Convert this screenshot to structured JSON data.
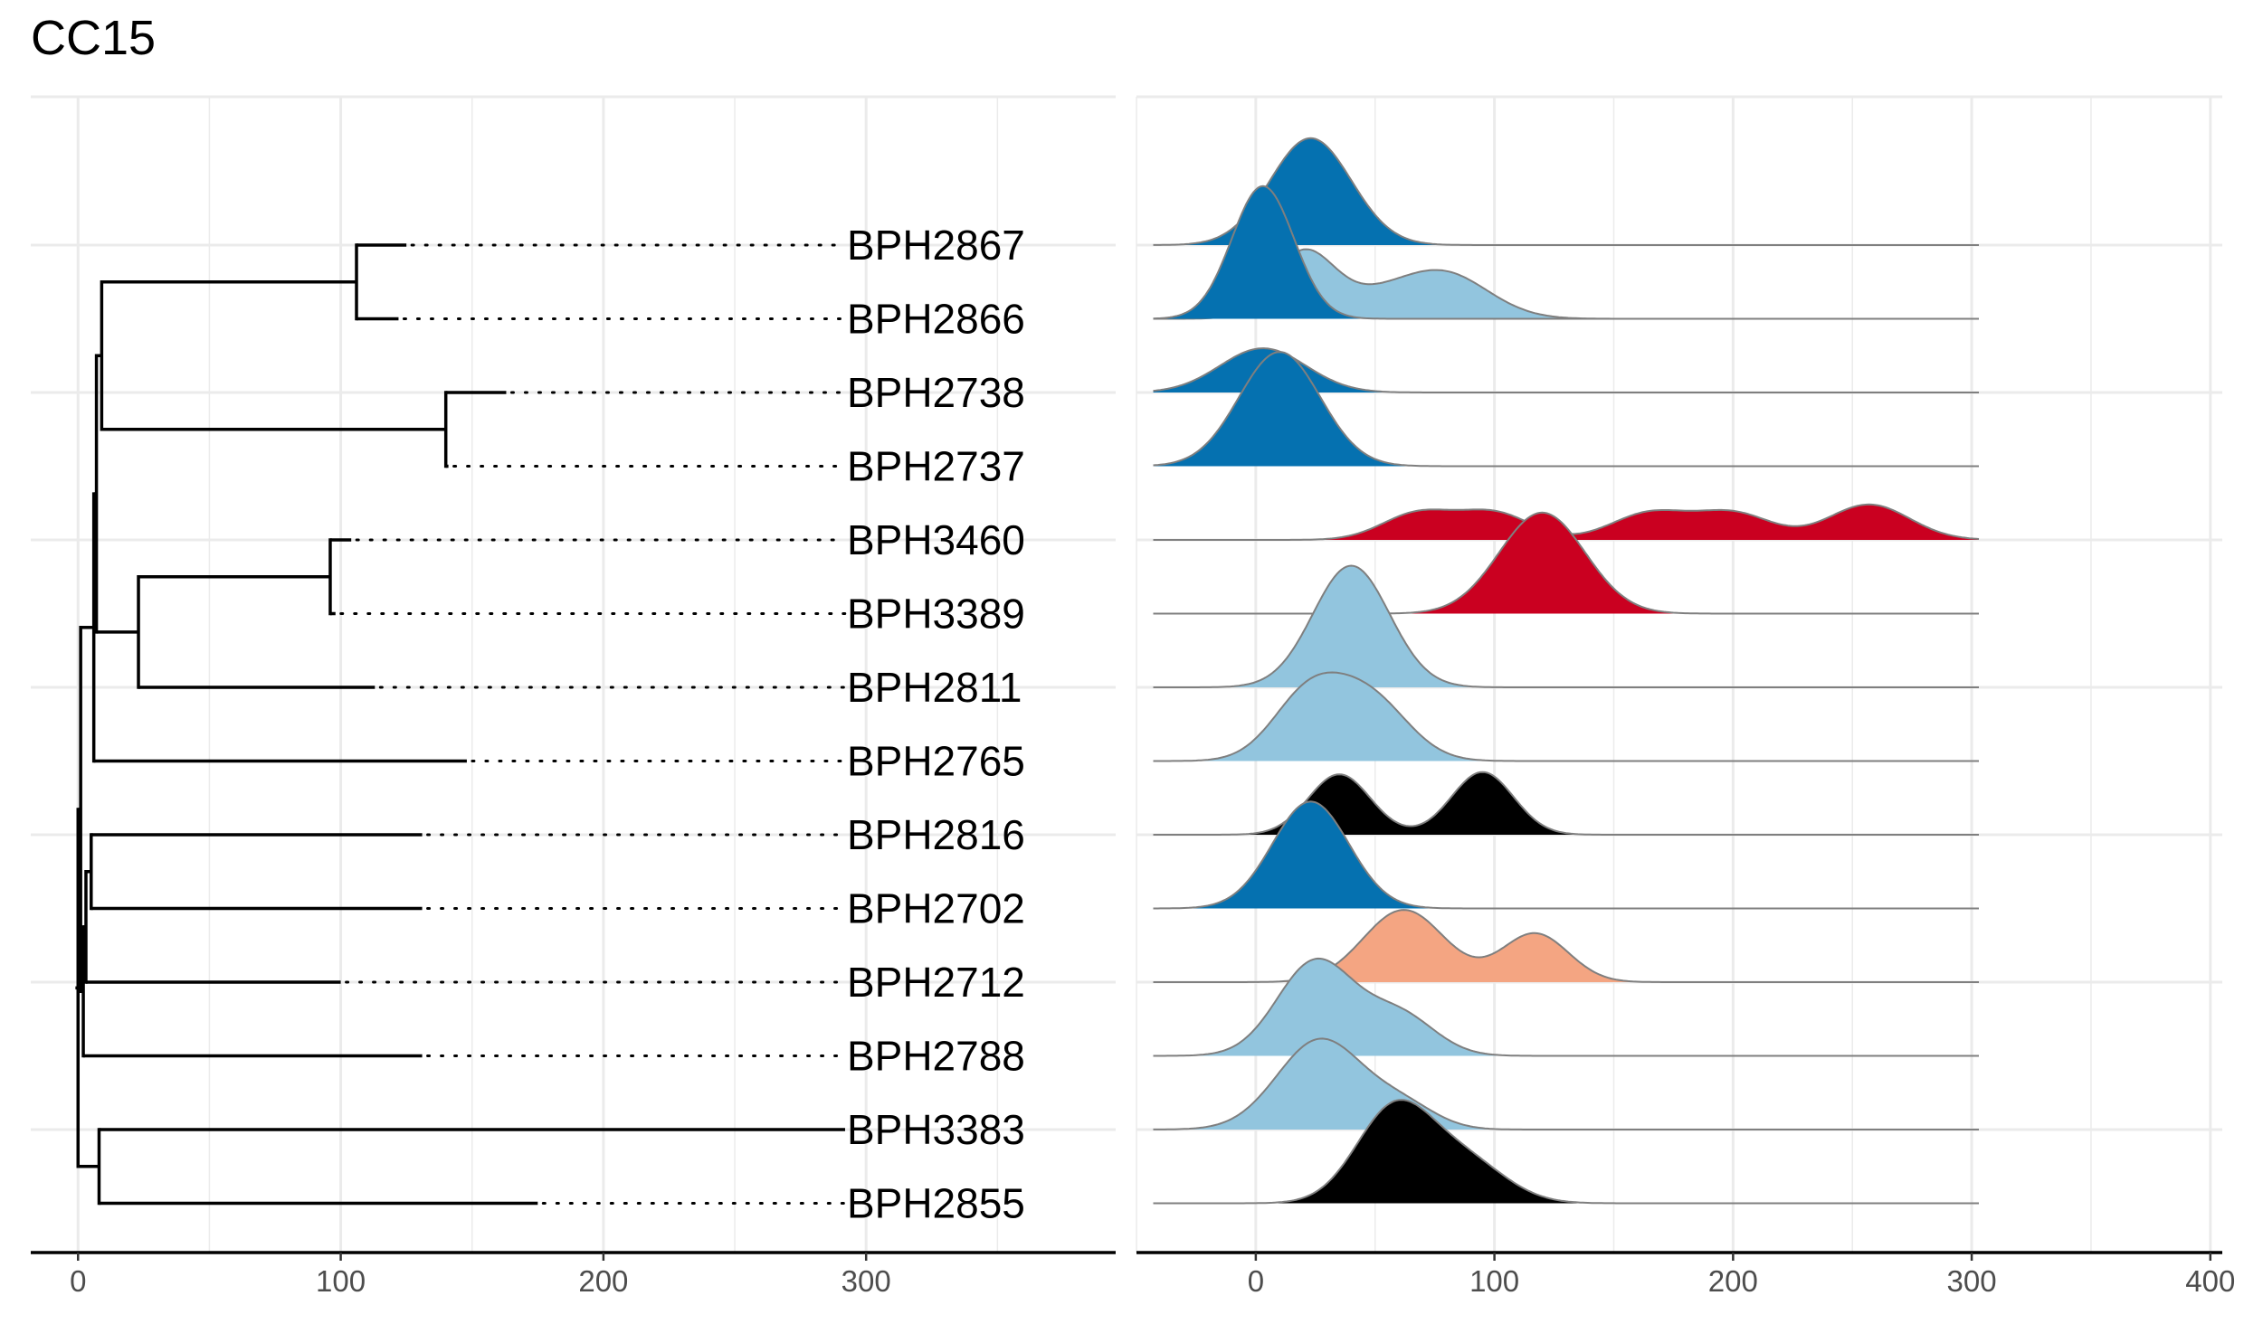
{
  "chart_data": {
    "title": "CC15",
    "type": "tree-ridgeline",
    "colors": {
      "dark_blue": "#0571b0",
      "light_blue": "#92c5de",
      "red": "#ca0020",
      "salmon": "#f4a582",
      "black": "#000000",
      "grid": "#ebebeb",
      "outline": "#7f7f7f",
      "branch": "#000000"
    },
    "tips": [
      "BPH2867",
      "BPH2866",
      "BPH2738",
      "BPH2737",
      "BPH3460",
      "BPH3389",
      "BPH2811",
      "BPH2765",
      "BPH2816",
      "BPH2702",
      "BPH2712",
      "BPH2788",
      "BPH3383",
      "BPH2855"
    ],
    "tree_panel": {
      "xlim": [
        -18,
        395
      ],
      "x_ticks": [
        0,
        100,
        200,
        300
      ],
      "tip_label_x": 292,
      "nodes": [
        {
          "id": "n2867",
          "tip": 0,
          "x": 125
        },
        {
          "id": "n2866",
          "tip": 1,
          "x": 122
        },
        {
          "id": "n2738",
          "tip": 2,
          "x": 163
        },
        {
          "id": "n2737",
          "tip": 3,
          "x": 141
        },
        {
          "id": "n3460",
          "tip": 4,
          "x": 104
        },
        {
          "id": "n3389",
          "tip": 5,
          "x": 98
        },
        {
          "id": "n2811",
          "tip": 6,
          "x": 113
        },
        {
          "id": "n2765",
          "tip": 7,
          "x": 148
        },
        {
          "id": "n2816",
          "tip": 8,
          "x": 131
        },
        {
          "id": "n2702",
          "tip": 9,
          "x": 131
        },
        {
          "id": "n2712",
          "tip": 10,
          "x": 100
        },
        {
          "id": "n2788",
          "tip": 11,
          "x": 131
        },
        {
          "id": "n3383",
          "tip": 12,
          "x": 292
        },
        {
          "id": "n2855",
          "tip": 13,
          "x": 175
        },
        {
          "id": "i1",
          "x": 106,
          "children": [
            "n2867",
            "n2866"
          ]
        },
        {
          "id": "i2",
          "x": 140,
          "children": [
            "n2738",
            "n2737"
          ]
        },
        {
          "id": "i3",
          "x": 9,
          "children": [
            "i1",
            "i2"
          ]
        },
        {
          "id": "i4",
          "x": 96,
          "children": [
            "n3460",
            "n3389"
          ]
        },
        {
          "id": "i5",
          "x": 23,
          "children": [
            "i4",
            "n2811"
          ]
        },
        {
          "id": "i6",
          "x": 7,
          "children": [
            "i3",
            "i5"
          ]
        },
        {
          "id": "i7",
          "x": 6,
          "children": [
            "i6",
            "n2765"
          ]
        },
        {
          "id": "i8",
          "x": 5,
          "children": [
            "n2816",
            "n2702"
          ]
        },
        {
          "id": "i9",
          "x": 3,
          "children": [
            "i8",
            "n2712"
          ]
        },
        {
          "id": "i10",
          "x": 2,
          "children": [
            "i9",
            "n2788"
          ]
        },
        {
          "id": "i11",
          "x": 1,
          "children": [
            "i7",
            "i10"
          ]
        },
        {
          "id": "i12",
          "x": 8,
          "children": [
            "n3383",
            "n2855"
          ]
        },
        {
          "id": "root",
          "x": 0,
          "children": [
            "i11",
            "i12"
          ]
        }
      ]
    },
    "ridge_panel": {
      "xlim": [
        -50,
        405
      ],
      "x_ticks": [
        0,
        100,
        200,
        300,
        400
      ],
      "baseline_range": [
        -43,
        303
      ],
      "rows": [
        {
          "tip": "BPH2867",
          "layers": [
            {
              "color": "dark_blue",
              "peaks": [
                {
                  "mu": 23,
                  "sd": 17,
                  "h": 1.45
                }
              ]
            }
          ]
        },
        {
          "tip": "BPH2866",
          "layers": [
            {
              "color": "light_blue",
              "peaks": [
                {
                  "mu": 20,
                  "sd": 13,
                  "h": 0.9
                },
                {
                  "mu": 78,
                  "sd": 19,
                  "h": 0.63
                },
                {
                  "mu": 48,
                  "sd": 15,
                  "h": 0.2
                }
              ]
            },
            {
              "color": "dark_blue",
              "peaks": [
                {
                  "mu": 3,
                  "sd": 13,
                  "h": 1.8
                }
              ]
            }
          ]
        },
        {
          "tip": "BPH2738",
          "layers": [
            {
              "color": "dark_blue",
              "peaks": [
                {
                  "mu": 3,
                  "sd": 18,
                  "h": 0.6
                }
              ]
            }
          ]
        },
        {
          "tip": "BPH2737",
          "layers": [
            {
              "color": "dark_blue",
              "peaks": [
                {
                  "mu": 10,
                  "sd": 17,
                  "h": 1.55
                }
              ]
            }
          ]
        },
        {
          "tip": "BPH3460",
          "layers": [
            {
              "color": "red",
              "peaks": [
                {
                  "mu": 68,
                  "sd": 15,
                  "h": 0.36
                },
                {
                  "mu": 100,
                  "sd": 15,
                  "h": 0.36
                },
                {
                  "mu": 165,
                  "sd": 16,
                  "h": 0.36
                },
                {
                  "mu": 200,
                  "sd": 16,
                  "h": 0.36
                },
                {
                  "mu": 257,
                  "sd": 17,
                  "h": 0.48
                }
              ]
            }
          ]
        },
        {
          "tip": "BPH3389",
          "layers": [
            {
              "color": "red",
              "peaks": [
                {
                  "mu": 120,
                  "sd": 18,
                  "h": 1.37
                }
              ]
            }
          ]
        },
        {
          "tip": "BPH2811",
          "layers": [
            {
              "color": "light_blue",
              "peaks": [
                {
                  "mu": 40,
                  "sd": 16,
                  "h": 1.65
                }
              ]
            }
          ]
        },
        {
          "tip": "BPH2765",
          "layers": [
            {
              "color": "light_blue",
              "peaks": [
                {
                  "mu": 22,
                  "sd": 15,
                  "h": 0.88
                },
                {
                  "mu": 48,
                  "sd": 16,
                  "h": 0.82
                }
              ]
            }
          ]
        },
        {
          "tip": "BPH2816",
          "layers": [
            {
              "color": "black",
              "peaks": [
                {
                  "mu": 35,
                  "sd": 13,
                  "h": 0.82
                },
                {
                  "mu": 95,
                  "sd": 13,
                  "h": 0.85
                }
              ]
            }
          ]
        },
        {
          "tip": "BPH2702",
          "layers": [
            {
              "color": "dark_blue",
              "peaks": [
                {
                  "mu": 23,
                  "sd": 16,
                  "h": 1.45
                }
              ]
            }
          ]
        },
        {
          "tip": "BPH2712",
          "layers": [
            {
              "color": "salmon",
              "peaks": [
                {
                  "mu": 62,
                  "sd": 17,
                  "h": 0.98
                },
                {
                  "mu": 117,
                  "sd": 14,
                  "h": 0.66
                }
              ]
            }
          ]
        },
        {
          "tip": "BPH2788",
          "layers": [
            {
              "color": "light_blue",
              "peaks": [
                {
                  "mu": 25,
                  "sd": 16,
                  "h": 1.28
                },
                {
                  "mu": 60,
                  "sd": 15,
                  "h": 0.55
                }
              ]
            }
          ]
        },
        {
          "tip": "BPH3383",
          "layers": [
            {
              "color": "light_blue",
              "peaks": [
                {
                  "mu": 27,
                  "sd": 18,
                  "h": 1.22
                },
                {
                  "mu": 62,
                  "sd": 14,
                  "h": 0.3
                }
              ]
            }
          ]
        },
        {
          "tip": "BPH2855",
          "layers": [
            {
              "color": "black",
              "peaks": [
                {
                  "mu": 58,
                  "sd": 16,
                  "h": 1.27
                },
                {
                  "mu": 88,
                  "sd": 17,
                  "h": 0.55
                }
              ]
            }
          ]
        }
      ]
    }
  }
}
